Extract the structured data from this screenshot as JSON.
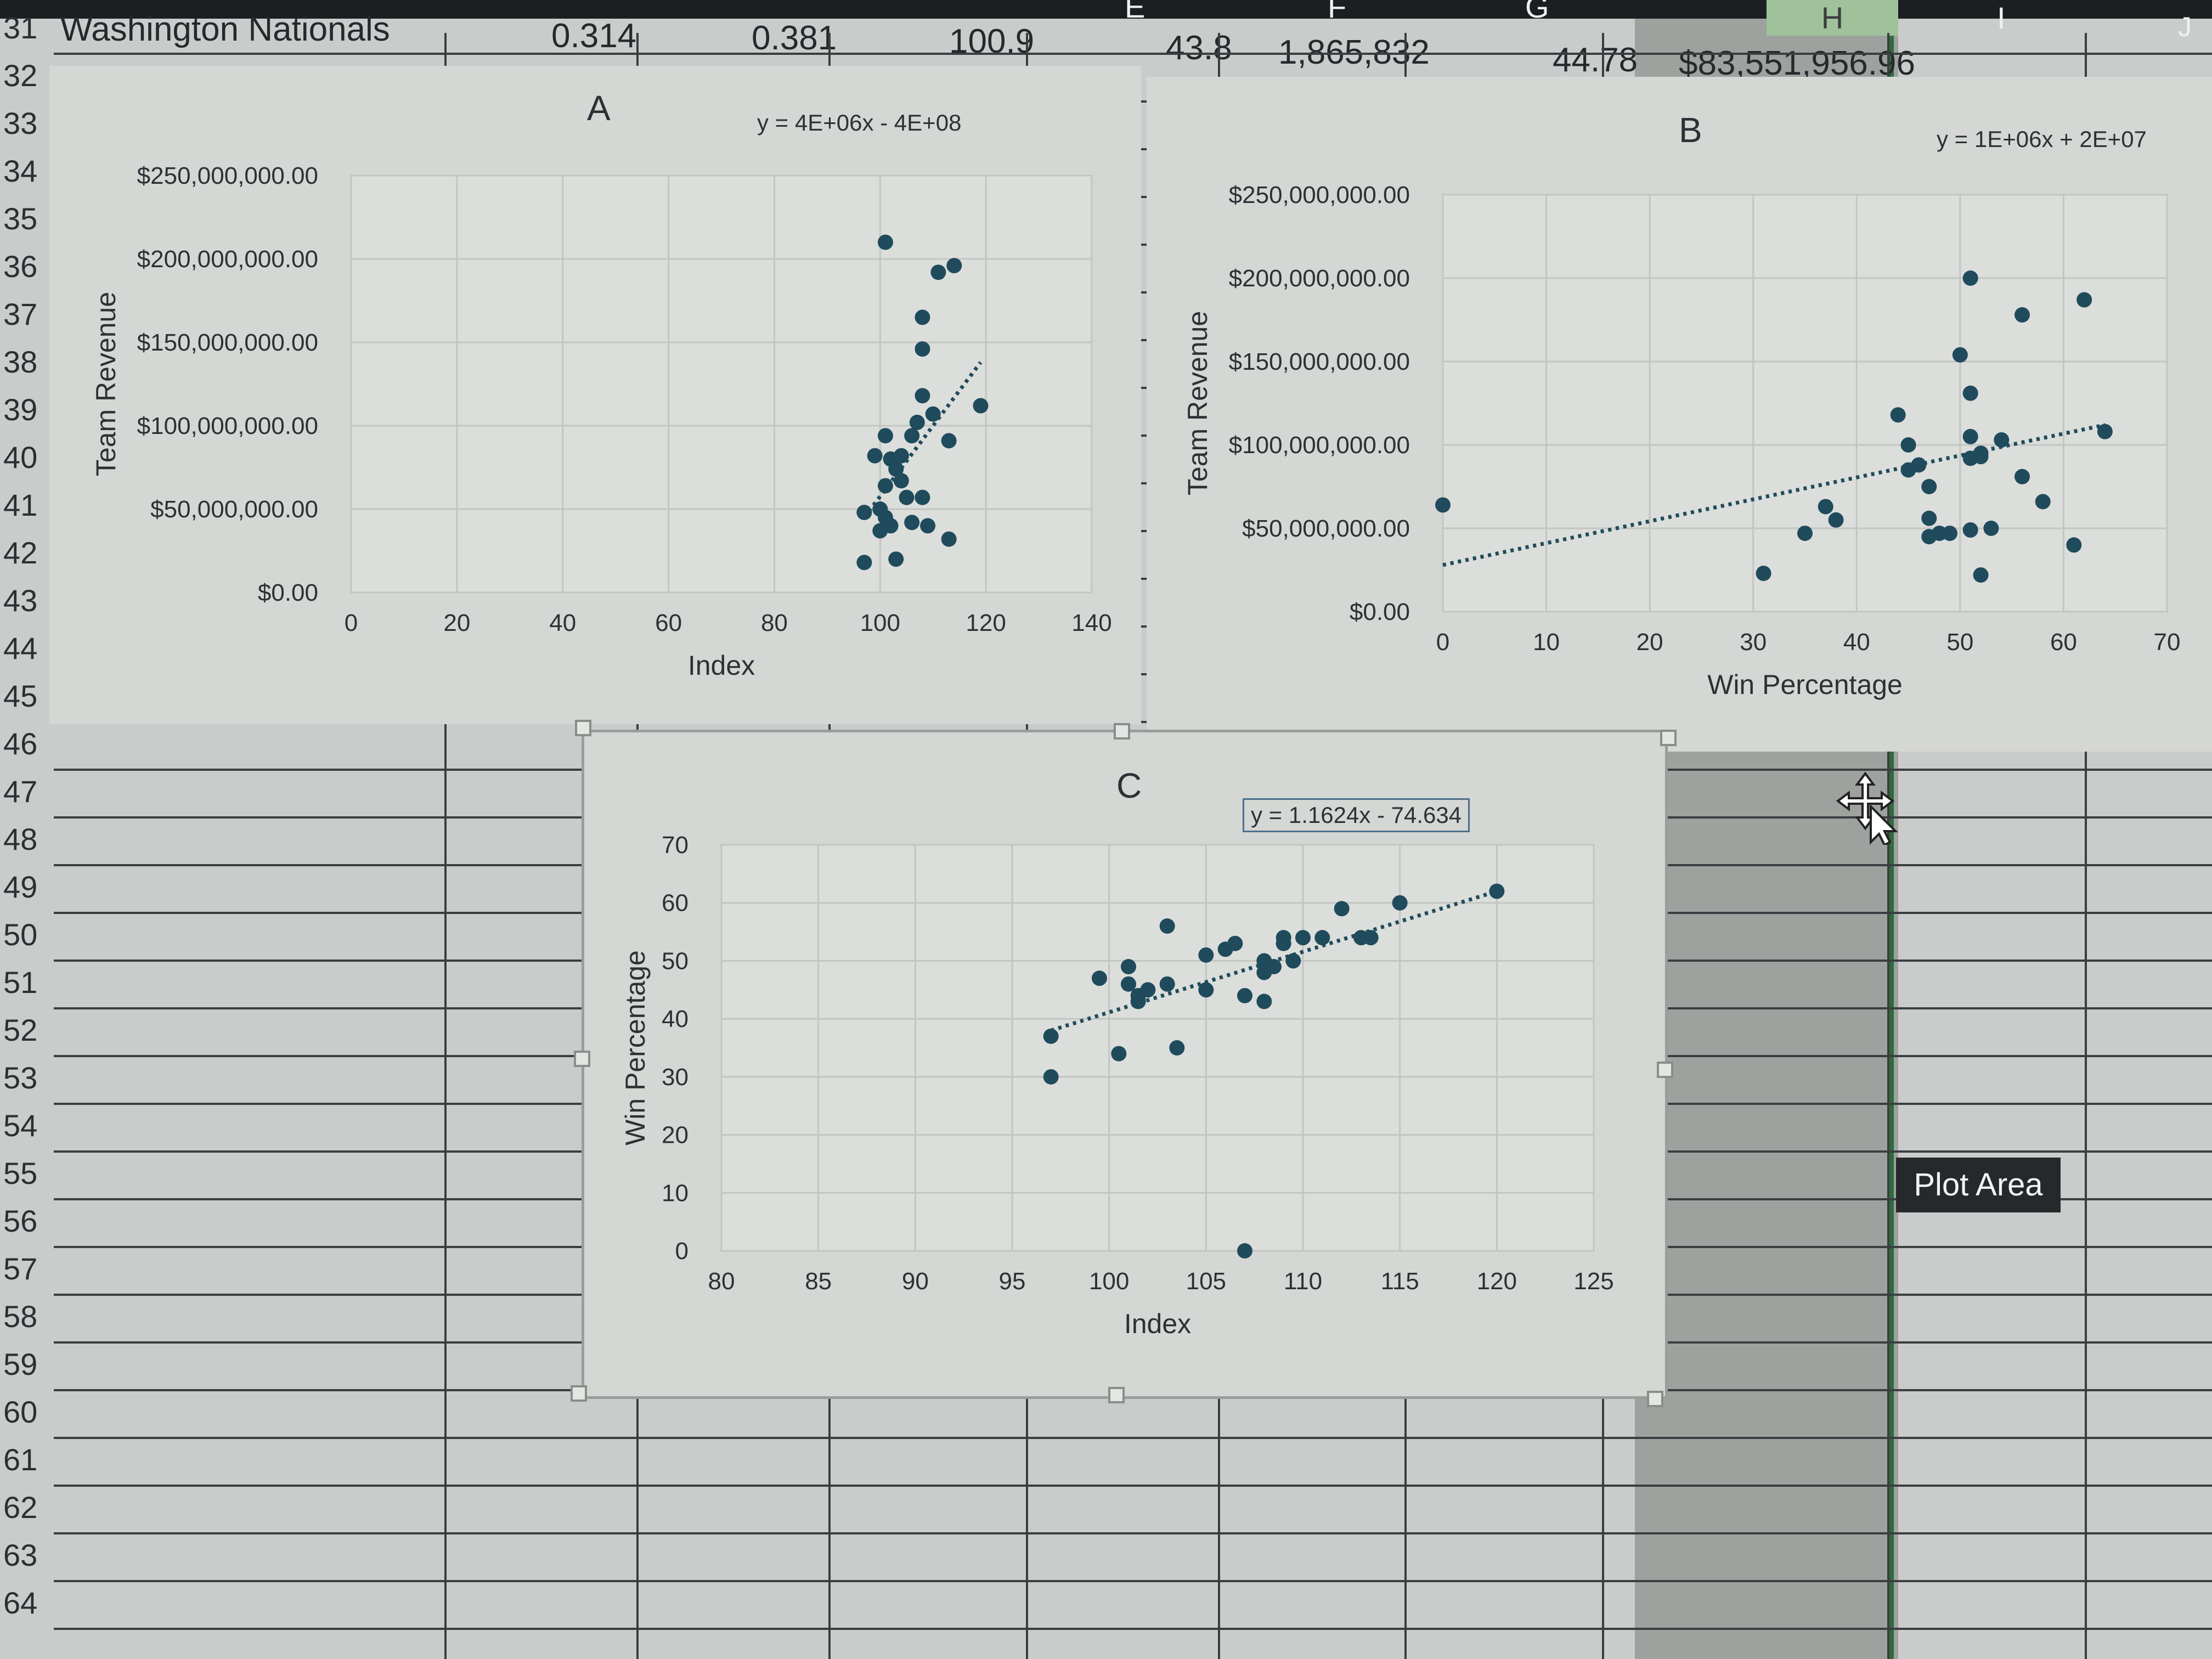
{
  "header": {
    "columns": [
      "E",
      "F",
      "G",
      "H",
      "I",
      "J"
    ],
    "row31": {
      "team": "Washington Nationals",
      "col_b": "0.314",
      "col_c": "0.381",
      "col_d": "100.9",
      "col_e": "43.8",
      "col_f": "1,865,832",
      "col_g": "44.78",
      "col_h": "$83,551,956.96"
    }
  },
  "row_numbers": [
    "31",
    "32",
    "33",
    "34",
    "35",
    "36",
    "37",
    "38",
    "39",
    "40",
    "41",
    "42",
    "43",
    "44",
    "45",
    "46",
    "47",
    "48",
    "49",
    "50",
    "51",
    "52",
    "53",
    "54",
    "55",
    "56",
    "57",
    "58",
    "59",
    "60",
    "61",
    "62",
    "63",
    "64"
  ],
  "tooltip": {
    "label": "Plot Area"
  },
  "colors": {
    "marker": "#1f4b5c",
    "trend": "#1f4b5c",
    "chart_bg": "#d5d7d4",
    "grid": "#c3c5c2"
  },
  "chart_data": [
    {
      "type": "scatter",
      "title": "A",
      "trendline_equation": "y = 4E+06x - 4E+08",
      "xlabel": "Index",
      "ylabel": "Team Revenue",
      "xlim": [
        0,
        140
      ],
      "ylim": [
        0,
        250000000
      ],
      "x_ticks": [
        "0",
        "20",
        "40",
        "60",
        "80",
        "100",
        "120",
        "140"
      ],
      "y_ticks": [
        "$0.00",
        "$50,000,000.00",
        "$100,000,000.00",
        "$150,000,000.00",
        "$200,000,000.00",
        "$250,000,000.00"
      ],
      "trendline": {
        "x": [
          97,
          119
        ],
        "y": [
          45000000,
          138000000
        ]
      },
      "points": [
        [
          101,
          210000000
        ],
        [
          111,
          192000000
        ],
        [
          114,
          196000000
        ],
        [
          108,
          165000000
        ],
        [
          108,
          146000000
        ],
        [
          108,
          118000000
        ],
        [
          110,
          107000000
        ],
        [
          107,
          102000000
        ],
        [
          106,
          94000000
        ],
        [
          101,
          94000000
        ],
        [
          113,
          91000000
        ],
        [
          119,
          112000000
        ],
        [
          102,
          80000000
        ],
        [
          103,
          74000000
        ],
        [
          104,
          67000000
        ],
        [
          101,
          64000000
        ],
        [
          105,
          57000000
        ],
        [
          108,
          57000000
        ],
        [
          97,
          48000000
        ],
        [
          100,
          50000000
        ],
        [
          101,
          45000000
        ],
        [
          102,
          40000000
        ],
        [
          100,
          37000000
        ],
        [
          106,
          42000000
        ],
        [
          109,
          40000000
        ],
        [
          113,
          32000000
        ],
        [
          97,
          18000000
        ],
        [
          103,
          20000000
        ],
        [
          104,
          82000000
        ],
        [
          99,
          82000000
        ]
      ]
    },
    {
      "type": "scatter",
      "title": "B",
      "trendline_equation": "y = 1E+06x + 2E+07",
      "xlabel": "Win Percentage",
      "ylabel": "Team Revenue",
      "xlim": [
        0,
        70
      ],
      "ylim": [
        0,
        250000000
      ],
      "x_ticks": [
        "0",
        "10",
        "20",
        "30",
        "40",
        "50",
        "60",
        "70"
      ],
      "y_ticks": [
        "$0.00",
        "$50,000,000.00",
        "$100,000,000.00",
        "$150,000,000.00",
        "$200,000,000.00",
        "$250,000,000.00"
      ],
      "trendline": {
        "x": [
          0,
          64
        ],
        "y": [
          28000000,
          112000000
        ]
      },
      "points": [
        [
          0,
          64000000
        ],
        [
          31,
          23000000
        ],
        [
          35,
          47000000
        ],
        [
          37,
          63000000
        ],
        [
          38,
          55000000
        ],
        [
          44,
          118000000
        ],
        [
          45,
          100000000
        ],
        [
          45,
          85000000
        ],
        [
          46,
          88000000
        ],
        [
          47,
          75000000
        ],
        [
          47,
          56000000
        ],
        [
          47,
          45000000
        ],
        [
          48,
          47000000
        ],
        [
          49,
          47000000
        ],
        [
          50,
          154000000
        ],
        [
          51,
          131000000
        ],
        [
          51,
          200000000
        ],
        [
          51,
          105000000
        ],
        [
          51,
          92000000
        ],
        [
          51,
          49000000
        ],
        [
          52,
          95000000
        ],
        [
          52,
          93000000
        ],
        [
          52,
          22000000
        ],
        [
          53,
          50000000
        ],
        [
          54,
          103000000
        ],
        [
          56,
          178000000
        ],
        [
          56,
          81000000
        ],
        [
          58,
          66000000
        ],
        [
          61,
          40000000
        ],
        [
          62,
          187000000
        ],
        [
          64,
          108000000
        ]
      ]
    },
    {
      "type": "scatter",
      "title": "C",
      "trendline_equation": "y = 1.1624x - 74.634",
      "xlabel": "Index",
      "ylabel": "Win Percentage",
      "xlim": [
        80,
        125
      ],
      "ylim": [
        0,
        70
      ],
      "x_ticks": [
        "80",
        "85",
        "90",
        "95",
        "100",
        "105",
        "110",
        "115",
        "120",
        "125"
      ],
      "y_ticks": [
        "0",
        "10",
        "20",
        "30",
        "40",
        "50",
        "60",
        "70"
      ],
      "trendline": {
        "x": [
          97,
          120
        ],
        "y": [
          38,
          62
        ]
      },
      "points": [
        [
          97,
          37
        ],
        [
          97,
          30
        ],
        [
          99.5,
          47
        ],
        [
          100.5,
          34
        ],
        [
          101,
          49
        ],
        [
          101,
          46
        ],
        [
          101.5,
          44
        ],
        [
          101.5,
          43
        ],
        [
          102,
          45
        ],
        [
          103,
          46
        ],
        [
          103,
          56
        ],
        [
          103.5,
          35
        ],
        [
          105,
          45
        ],
        [
          105,
          51
        ],
        [
          106,
          52
        ],
        [
          106.5,
          53
        ],
        [
          107,
          44
        ],
        [
          108,
          43
        ],
        [
          108,
          48
        ],
        [
          108,
          50
        ],
        [
          108.5,
          49
        ],
        [
          109,
          54
        ],
        [
          109,
          53
        ],
        [
          109.5,
          50
        ],
        [
          110,
          54
        ],
        [
          111,
          54
        ],
        [
          112,
          59
        ],
        [
          113,
          54
        ],
        [
          115,
          60
        ],
        [
          113.5,
          54
        ],
        [
          120,
          62
        ],
        [
          107,
          0
        ]
      ]
    }
  ]
}
